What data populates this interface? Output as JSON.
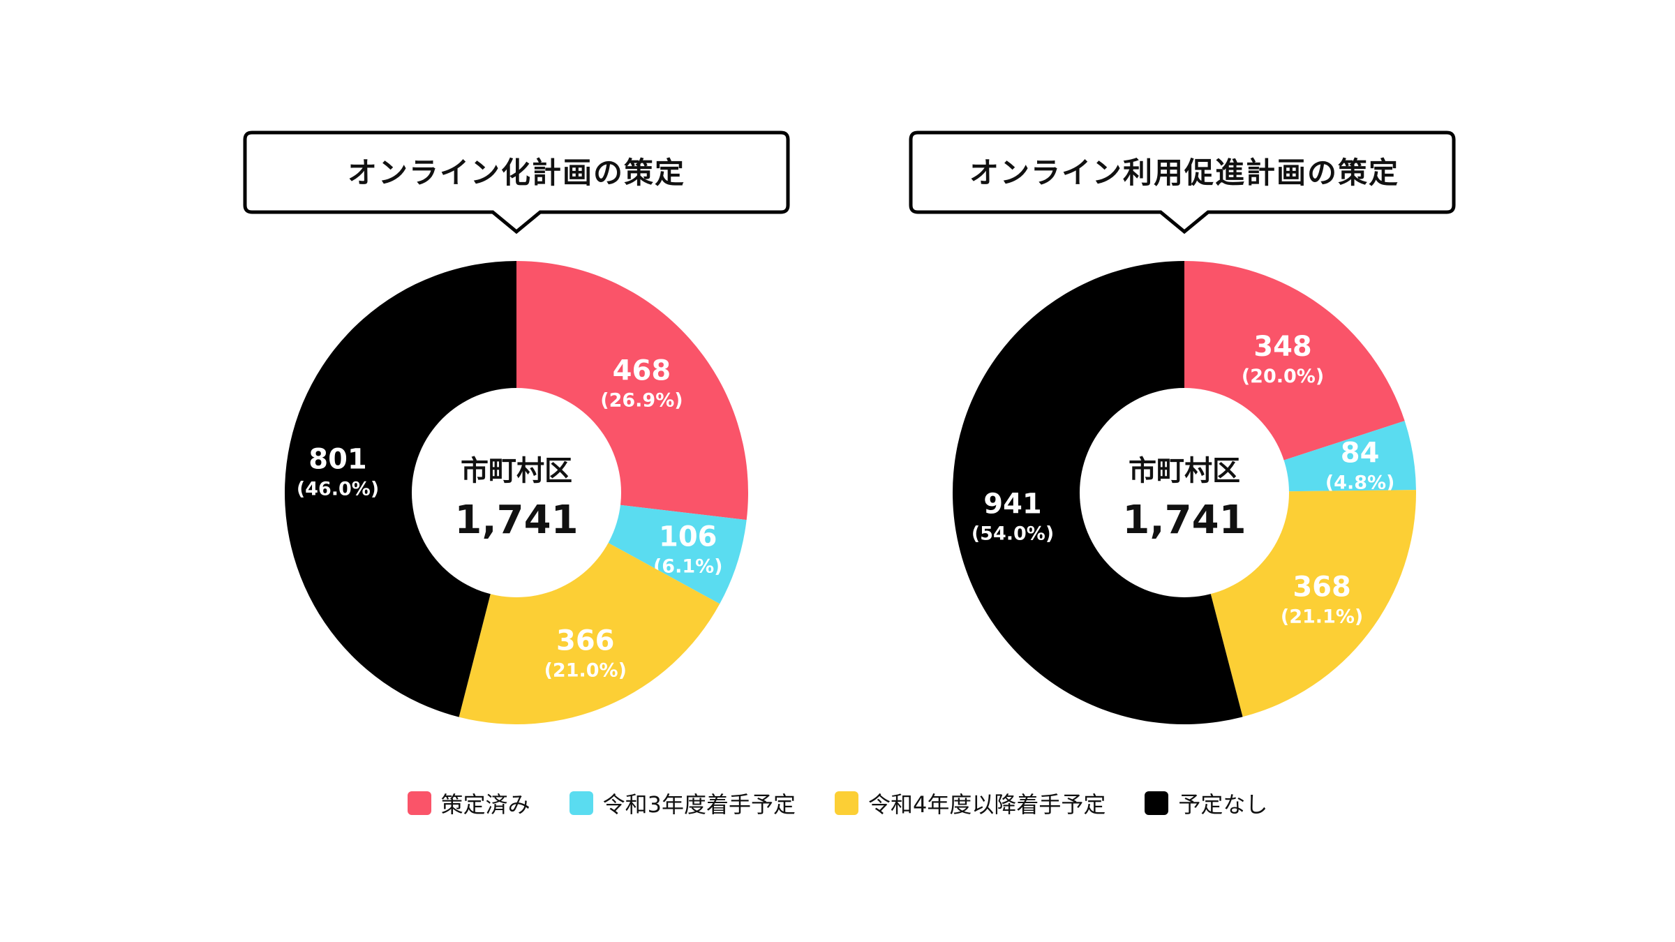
{
  "colors": {
    "策定済み": "#fa5469",
    "令和3年度着手予定": "#5adcf0",
    "令和4年度以降着手予定": "#fccf35",
    "予定なし": "#000000"
  },
  "legend": [
    {
      "label": "策定済み",
      "color": "#fa5469"
    },
    {
      "label": "令和3年度着手予定",
      "color": "#5adcf0"
    },
    {
      "label": "令和4年度以降着手予定",
      "color": "#fccf35"
    },
    {
      "label": "予定なし",
      "color": "#000000"
    }
  ],
  "chart_data": [
    {
      "type": "pie",
      "title": "オンライン化計画の策定",
      "center_label": "市町村区",
      "center_total": "1,741",
      "slices": [
        {
          "name": "策定済み",
          "value": 468,
          "value_label": "468",
          "pct_label": "(26.9%)"
        },
        {
          "name": "令和3年度着手予定",
          "value": 106,
          "value_label": "106",
          "pct_label": "(6.1%)"
        },
        {
          "name": "令和4年度以降着手予定",
          "value": 366,
          "value_label": "366",
          "pct_label": "(21.0%)"
        },
        {
          "name": "予定なし",
          "value": 801,
          "value_label": "801",
          "pct_label": "(46.0%)"
        }
      ]
    },
    {
      "type": "pie",
      "title": "オンライン利用促進計画の策定",
      "center_label": "市町村区",
      "center_total": "1,741",
      "slices": [
        {
          "name": "策定済み",
          "value": 348,
          "value_label": "348",
          "pct_label": "(20.0%)"
        },
        {
          "name": "令和3年度着手予定",
          "value": 84,
          "value_label": "84",
          "pct_label": "(4.8%)"
        },
        {
          "name": "令和4年度以降着手予定",
          "value": 368,
          "value_label": "368",
          "pct_label": "(21.1%)"
        },
        {
          "name": "予定なし",
          "value": 941,
          "value_label": "941",
          "pct_label": "(54.0%)"
        }
      ]
    }
  ]
}
